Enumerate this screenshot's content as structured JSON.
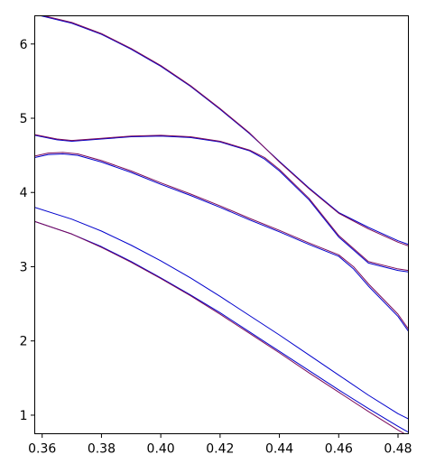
{
  "chart_data": {
    "type": "line",
    "title": "",
    "xlabel": "",
    "ylabel": "",
    "xlim": [
      0.3575,
      0.4835
    ],
    "ylim": [
      0.75,
      6.38
    ],
    "x_ticks": [
      0.36,
      0.38,
      0.4,
      0.42,
      0.44,
      0.46,
      0.48
    ],
    "x_tick_labels": [
      "0.36",
      "0.38",
      "0.40",
      "0.42",
      "0.44",
      "0.46",
      "0.48"
    ],
    "y_ticks": [
      1,
      2,
      3,
      4,
      5,
      6
    ],
    "y_tick_labels": [
      "1",
      "2",
      "3",
      "4",
      "5",
      "6"
    ],
    "grid": false,
    "line_colors": [
      "#0000cc",
      "#7b0a5a"
    ],
    "series": [
      {
        "color": "#0000cc",
        "x": [
          0.3575,
          0.37,
          0.38,
          0.39,
          0.4,
          0.41,
          0.42,
          0.43,
          0.44,
          0.45,
          0.46,
          0.47,
          0.48,
          0.4835
        ],
        "y": [
          6.4,
          6.28,
          6.13,
          5.93,
          5.7,
          5.43,
          5.12,
          4.79,
          4.42,
          4.06,
          3.73,
          3.53,
          3.35,
          3.3
        ]
      },
      {
        "color": "#7b0a5a",
        "x": [
          0.3575,
          0.37,
          0.38,
          0.39,
          0.4,
          0.41,
          0.42,
          0.43,
          0.44,
          0.45,
          0.46,
          0.47,
          0.48,
          0.4835
        ],
        "y": [
          6.41,
          6.29,
          6.14,
          5.94,
          5.71,
          5.44,
          5.13,
          4.8,
          4.41,
          4.05,
          3.72,
          3.51,
          3.33,
          3.28
        ]
      },
      {
        "color": "#0000cc",
        "x": [
          0.3575,
          0.365,
          0.37,
          0.38,
          0.39,
          0.4,
          0.41,
          0.42,
          0.43,
          0.435,
          0.44,
          0.45,
          0.46,
          0.47,
          0.48,
          0.4835
        ],
        "y": [
          4.77,
          4.71,
          4.69,
          4.72,
          4.75,
          4.76,
          4.74,
          4.68,
          4.56,
          4.45,
          4.29,
          3.9,
          3.4,
          3.05,
          2.95,
          2.93
        ]
      },
      {
        "color": "#7b0a5a",
        "x": [
          0.3575,
          0.365,
          0.37,
          0.38,
          0.39,
          0.4,
          0.41,
          0.42,
          0.43,
          0.435,
          0.44,
          0.45,
          0.46,
          0.47,
          0.48,
          0.4835
        ],
        "y": [
          4.78,
          4.72,
          4.7,
          4.73,
          4.76,
          4.77,
          4.75,
          4.69,
          4.57,
          4.47,
          4.31,
          3.92,
          3.42,
          3.07,
          2.97,
          2.95
        ]
      },
      {
        "color": "#0000cc",
        "x": [
          0.3575,
          0.362,
          0.367,
          0.372,
          0.38,
          0.39,
          0.4,
          0.41,
          0.42,
          0.43,
          0.44,
          0.45,
          0.46,
          0.465,
          0.47,
          0.48,
          0.4835
        ],
        "y": [
          4.47,
          4.51,
          4.52,
          4.5,
          4.41,
          4.27,
          4.11,
          3.96,
          3.8,
          3.63,
          3.47,
          3.3,
          3.14,
          2.97,
          2.74,
          2.33,
          2.13
        ]
      },
      {
        "color": "#7b0a5a",
        "x": [
          0.3575,
          0.362,
          0.367,
          0.372,
          0.38,
          0.39,
          0.4,
          0.41,
          0.42,
          0.43,
          0.44,
          0.45,
          0.46,
          0.465,
          0.47,
          0.48,
          0.4835
        ],
        "y": [
          4.49,
          4.53,
          4.54,
          4.52,
          4.43,
          4.29,
          4.13,
          3.98,
          3.82,
          3.65,
          3.49,
          3.32,
          3.16,
          3.0,
          2.77,
          2.36,
          2.16
        ]
      },
      {
        "color": "#0000cc",
        "x": [
          0.3575,
          0.37,
          0.38,
          0.39,
          0.4,
          0.41,
          0.42,
          0.43,
          0.44,
          0.45,
          0.46,
          0.47,
          0.48,
          0.4835
        ],
        "y": [
          3.8,
          3.64,
          3.48,
          3.29,
          3.08,
          2.85,
          2.6,
          2.34,
          2.08,
          1.81,
          1.54,
          1.27,
          1.02,
          0.95
        ]
      },
      {
        "color": "#0000cc",
        "x": [
          0.3575,
          0.37,
          0.38,
          0.39,
          0.4,
          0.41,
          0.42,
          0.43,
          0.44,
          0.45,
          0.46,
          0.47,
          0.48,
          0.4835
        ],
        "y": [
          3.61,
          3.44,
          3.27,
          3.07,
          2.85,
          2.62,
          2.38,
          2.12,
          1.86,
          1.6,
          1.34,
          1.09,
          0.85,
          0.77
        ]
      },
      {
        "color": "#7b0a5a",
        "x": [
          0.3575,
          0.37,
          0.38,
          0.39,
          0.4,
          0.41,
          0.42,
          0.43,
          0.44,
          0.45,
          0.46,
          0.47,
          0.48,
          0.4835
        ],
        "y": [
          3.61,
          3.44,
          3.26,
          3.06,
          2.84,
          2.61,
          2.36,
          2.1,
          1.84,
          1.57,
          1.31,
          1.05,
          0.8,
          0.72
        ]
      }
    ]
  }
}
